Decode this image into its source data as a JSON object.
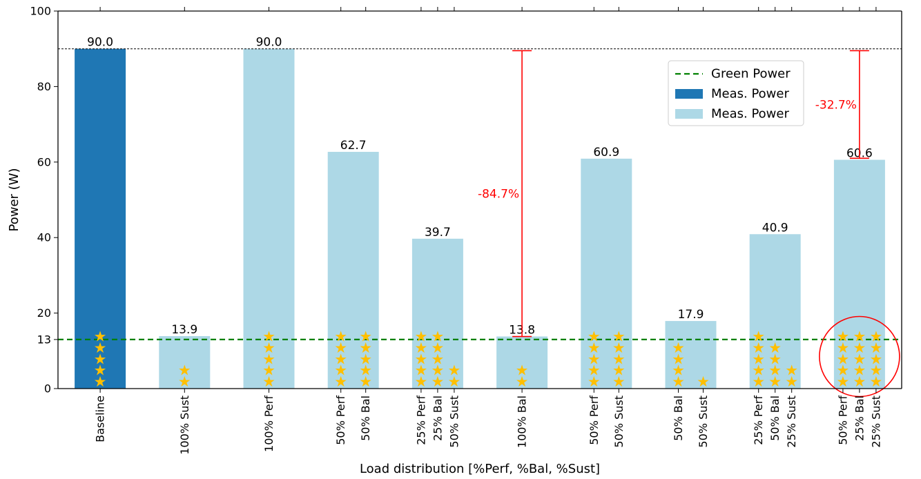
{
  "chart_data": {
    "type": "bar",
    "xlabel": "Load distribution [%Perf, %Bal, %Sust]",
    "ylabel": "Power (W)",
    "ylim": [
      0,
      100
    ],
    "yticks": [
      0,
      13,
      20,
      40,
      60,
      80,
      100
    ],
    "grid": false,
    "legend_placement": "upper-right",
    "categories": [
      [
        "Baseline"
      ],
      [
        "100% Sust"
      ],
      [
        "100% Perf"
      ],
      [
        "50% Perf",
        "50% Bal"
      ],
      [
        "25% Perf",
        "25% Bal",
        "50% Sust"
      ],
      [
        "100% Bal"
      ],
      [
        "50% Perf",
        "50% Sust"
      ],
      [
        "50% Bal",
        "50% Sust"
      ],
      [
        "25% Perf",
        "50% Bal",
        "25% Sust"
      ],
      [
        "50% Perf",
        "25% Bal",
        "25% Sust"
      ]
    ],
    "values": [
      90.0,
      13.9,
      90.0,
      62.7,
      39.7,
      13.8,
      60.9,
      17.9,
      40.9,
      60.6
    ],
    "value_labels": [
      "90.0",
      "13.9",
      "90.0",
      "62.7",
      "39.7",
      "13.8",
      "60.9",
      "17.9",
      "40.9",
      "60.6"
    ],
    "series": [
      {
        "name": "Green Power",
        "kind": "hline",
        "value": 13,
        "color": "#008000",
        "style": "dashed"
      },
      {
        "name": "Meas. Power",
        "color": "#1f77b4",
        "bars": [
          0
        ]
      },
      {
        "name": "Meas. Power",
        "color": "#add8e6",
        "bars": [
          1,
          2,
          3,
          4,
          5,
          6,
          7,
          8,
          9
        ]
      }
    ],
    "baseline_reference": {
      "value": 90,
      "color": "#000000",
      "style": "dashed"
    },
    "stars": [
      [
        [
          5
        ]
      ],
      [
        [
          2
        ]
      ],
      [
        [
          5
        ]
      ],
      [
        [
          5
        ],
        [
          5
        ]
      ],
      [
        [
          5
        ],
        [
          5
        ],
        [
          2
        ]
      ],
      [
        [
          2
        ]
      ],
      [
        [
          5
        ],
        [
          5
        ]
      ],
      [
        [
          4
        ],
        [
          1
        ]
      ],
      [
        [
          5
        ],
        [
          4
        ],
        [
          2
        ]
      ],
      [
        [
          5
        ],
        [
          5
        ],
        [
          5
        ]
      ]
    ],
    "star_color": "#ffbf00",
    "annotations": [
      {
        "bar": 5,
        "from": 89.5,
        "to": 13.8,
        "text": "-84.7%",
        "color": "#ff0000"
      },
      {
        "bar": 9,
        "from": 89.5,
        "to": 61.0,
        "text": "-32.7%",
        "color": "#ff0000"
      }
    ],
    "highlight": {
      "bar": 9,
      "shape": "ellipse",
      "color": "#ff0000"
    }
  }
}
